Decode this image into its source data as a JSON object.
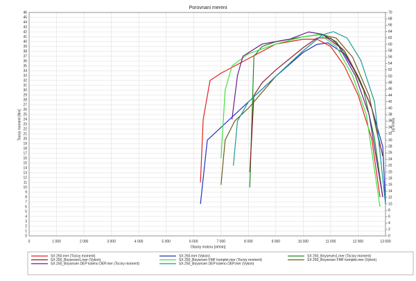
{
  "chart_data": {
    "type": "line",
    "title": "Porovnani mereni",
    "x_label": "Otacky motoru [ot/min]",
    "y_label": "Tocivy moment [Nm]",
    "y2_label": "Vykon [k]",
    "xlim": [
      0,
      13000
    ],
    "xticks": [
      0,
      {
        "value": 1000,
        "label": "1 000"
      },
      {
        "value": 2000,
        "label": "2 000"
      },
      {
        "value": 3000,
        "label": "3 000"
      },
      {
        "value": 4000,
        "label": "4 000"
      },
      {
        "value": 5000,
        "label": "5 000"
      },
      {
        "value": 6000,
        "label": "6 000"
      },
      {
        "value": 7000,
        "label": "7 000"
      },
      {
        "value": 8000,
        "label": "8 000"
      },
      {
        "value": 9000,
        "label": "9 000"
      },
      {
        "value": 10000,
        "label": "10 000"
      },
      {
        "value": 11000,
        "label": "11 000"
      },
      {
        "value": 12000,
        "label": "12 000"
      },
      {
        "value": 13000,
        "label": "13 000"
      }
    ],
    "ylim": [
      0,
      46
    ],
    "yticks": [
      0,
      1,
      2,
      3,
      4,
      5,
      6,
      7,
      8,
      9,
      10,
      11,
      12,
      13,
      14,
      15,
      16,
      17,
      18,
      19,
      20,
      21,
      22,
      23,
      24,
      25,
      26,
      27,
      28,
      29,
      30,
      31,
      32,
      33,
      34,
      35,
      36,
      37,
      38,
      39,
      40,
      41,
      42,
      43,
      44,
      45,
      46
    ],
    "y2lim": [
      0,
      70
    ],
    "y2ticks": [
      0,
      2,
      4,
      6,
      8,
      10,
      12,
      14,
      16,
      18,
      20,
      22,
      24,
      26,
      28,
      30,
      32,
      34,
      36,
      38,
      40,
      42,
      44,
      46,
      48,
      50,
      52,
      54,
      56,
      58,
      60,
      62,
      64,
      66,
      68,
      70
    ],
    "grid": true,
    "series": [
      {
        "name": "SX 250.mer  (Tocivy moment)",
        "color": "#e02020",
        "x": [
          6250,
          6350,
          6600,
          7000,
          7500,
          8000,
          8500,
          9000,
          10000,
          10500,
          11000,
          11500,
          12000,
          12500,
          12800
        ],
        "values": [
          11,
          24,
          32,
          33.5,
          35,
          36.5,
          38,
          39.5,
          40.5,
          40.5,
          39,
          35,
          29,
          20,
          8
        ]
      },
      {
        "name": "SX 250.mer  (Vykon)",
        "color": "#2030c0",
        "x": [
          6250,
          6500,
          7000,
          8000,
          9000,
          10000,
          10500,
          10900,
          11500,
          12000,
          12500,
          12900,
          13000
        ],
        "values": [
          10,
          30,
          34,
          42,
          50,
          57.5,
          60,
          60.5,
          57,
          50,
          40,
          28,
          10
        ],
        "axis": "y2"
      },
      {
        "name": "SX 250_Boysesen1.mer  (Tocivy moment)",
        "color": "#1a8a1a",
        "x": [
          8050,
          8200,
          8500,
          9000,
          10000,
          10700,
          11200,
          11700,
          12200,
          12600,
          12900
        ],
        "values": [
          10,
          37,
          39,
          40,
          41,
          41.5,
          40,
          36,
          30,
          20,
          8
        ]
      },
      {
        "name": "SX 250_Boysesen1.mer  (Vykon)",
        "color": "#8a1a2a",
        "x": [
          8050,
          8200,
          8500,
          9000,
          10000,
          10500,
          11000,
          11500,
          12000,
          12500,
          12900
        ],
        "values": [
          20,
          44,
          48,
          52,
          59,
          62,
          62,
          58,
          50,
          40,
          25
        ],
        "axis": "y2"
      },
      {
        "name": "SX 250_Boysesen FMF komplet.mer  (Tocivy moment)",
        "color": "#40e040",
        "x": [
          7000,
          7150,
          7400,
          8000,
          9000,
          10000,
          10600,
          11200,
          11800,
          12300,
          12800
        ],
        "values": [
          16,
          30,
          35,
          37.5,
          39.5,
          41,
          41.5,
          39,
          33,
          25,
          6
        ]
      },
      {
        "name": "SX 250_Boysesen FMF komplet.mer  (Vykon)",
        "color": "#6a5a1a",
        "x": [
          7000,
          7150,
          7500,
          8000,
          9000,
          10000,
          10700,
          11200,
          11800,
          12400,
          12800
        ],
        "values": [
          16,
          30,
          36,
          40,
          50,
          58,
          63,
          62,
          56,
          44,
          28
        ],
        "axis": "y2"
      },
      {
        "name": "SX 250_Boysesen DEP koleno DEP.mer  (Tocivy moment)",
        "color": "#6a1a8a",
        "x": [
          7400,
          7600,
          7800,
          8500,
          9500,
          10200,
          10700,
          11300,
          11900,
          12400,
          12900
        ],
        "values": [
          24,
          33,
          37,
          39.5,
          40.5,
          42,
          41.5,
          39,
          33,
          25,
          8
        ]
      },
      {
        "name": "SX 250_Boysesen DEP koleno DEP.mer  (Vykon)",
        "color": "#1a9a9a",
        "x": [
          7450,
          7600,
          8000,
          9000,
          10000,
          10700,
          11100,
          11600,
          12100,
          12600,
          13000
        ],
        "values": [
          22,
          36,
          42,
          50,
          58,
          63,
          64,
          62,
          55,
          42,
          10
        ],
        "axis": "y2"
      }
    ]
  }
}
